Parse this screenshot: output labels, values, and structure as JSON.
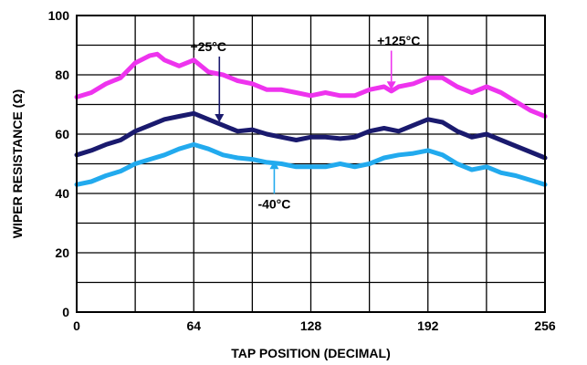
{
  "chart_data": {
    "type": "line",
    "title": "",
    "xlabel": "TAP POSITION (DECIMAL)",
    "ylabel": "WIPER RESISTANCE (Ω)",
    "xlim": [
      0,
      256
    ],
    "ylim": [
      0,
      100
    ],
    "x_ticks": [
      0,
      64,
      128,
      192,
      256
    ],
    "x_tick_labels": [
      "0",
      "64",
      "128",
      "192",
      "256"
    ],
    "y_ticks": [
      0,
      20,
      40,
      60,
      80,
      100
    ],
    "y_tick_labels": [
      "0",
      "20",
      "40",
      "60",
      "80",
      "100"
    ],
    "grid": {
      "x_step": 32,
      "y_step": 10,
      "on": true
    },
    "series": [
      {
        "name": "+125°C",
        "color": "#ee33ee",
        "x": [
          0,
          8,
          16,
          24,
          32,
          40,
          44,
          48,
          56,
          64,
          72,
          80,
          88,
          96,
          104,
          112,
          120,
          128,
          136,
          144,
          152,
          160,
          168,
          172,
          176,
          184,
          192,
          200,
          208,
          216,
          224,
          232,
          240,
          248,
          256
        ],
        "y": [
          72.5,
          74,
          77,
          79,
          84,
          86.5,
          87,
          85,
          83,
          85,
          81,
          80,
          78,
          77,
          75,
          75,
          74,
          73,
          74,
          73,
          73,
          75,
          76,
          74.5,
          76,
          77,
          79,
          79,
          76,
          74,
          76,
          74,
          71,
          68,
          66
        ]
      },
      {
        "name": "+25°C",
        "color": "#1a1a6e",
        "x": [
          0,
          8,
          16,
          24,
          32,
          40,
          48,
          56,
          64,
          72,
          80,
          88,
          96,
          104,
          112,
          120,
          128,
          136,
          144,
          152,
          160,
          168,
          176,
          184,
          192,
          200,
          208,
          216,
          224,
          232,
          240,
          248,
          256
        ],
        "y": [
          53,
          54.5,
          56.5,
          58,
          61,
          63,
          65,
          66,
          67,
          65,
          63,
          61,
          61.5,
          60,
          59,
          58,
          59,
          59,
          58.5,
          59,
          61,
          62,
          61,
          63,
          65,
          64,
          61,
          59,
          60,
          58,
          56,
          54,
          52
        ]
      },
      {
        "name": "-40°C",
        "color": "#22aaee",
        "x": [
          0,
          8,
          16,
          24,
          32,
          40,
          48,
          56,
          64,
          72,
          80,
          88,
          96,
          104,
          112,
          120,
          128,
          136,
          144,
          152,
          160,
          168,
          176,
          184,
          192,
          200,
          208,
          216,
          224,
          232,
          240,
          248,
          256
        ],
        "y": [
          43,
          44,
          46,
          47.5,
          50,
          51.5,
          53,
          55,
          56.5,
          55,
          53,
          52,
          51.5,
          50.5,
          50,
          49,
          49,
          49,
          50,
          49,
          50,
          52,
          53,
          53.5,
          54.5,
          53,
          50,
          48,
          49,
          47,
          46,
          44.5,
          43
        ]
      }
    ],
    "annotations": [
      {
        "text": "+25°C",
        "series": "+25°C",
        "at_x": 78,
        "at_y": 64,
        "label_x": 72,
        "label_y": 88
      },
      {
        "text": "+125°C",
        "series": "+125°C",
        "at_x": 172,
        "at_y": 75,
        "label_x": 176,
        "label_y": 90
      },
      {
        "text": "-40°C",
        "series": "-40°C",
        "at_x": 108,
        "at_y": 51,
        "label_x": 108,
        "label_y": 35
      }
    ]
  }
}
